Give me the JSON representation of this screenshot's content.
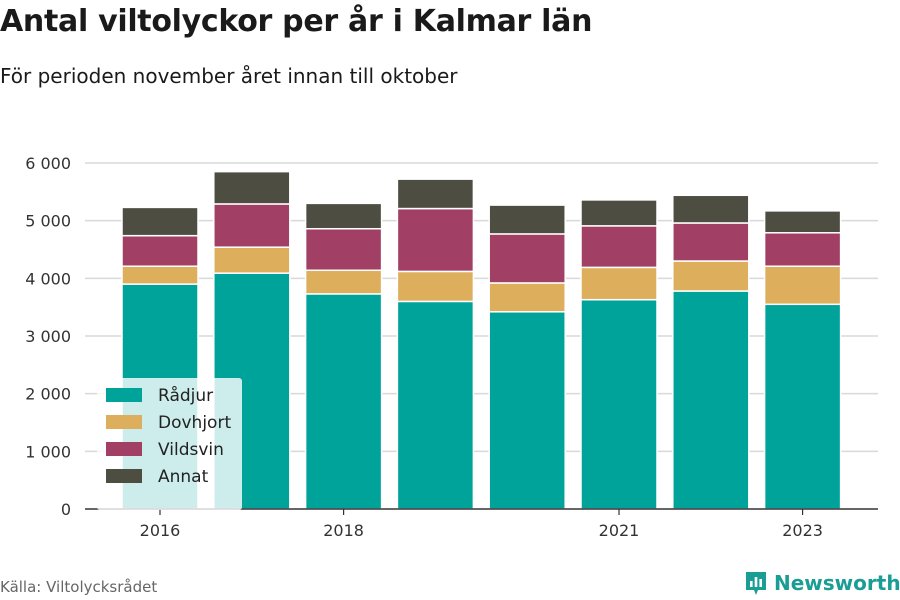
{
  "header": {
    "title": "Antal viltolyckor per år i Kalmar län",
    "subtitle": "För perioden november året innan till oktober"
  },
  "footer": {
    "source": "Källa: Viltolycksrådet",
    "brand": "Newsworthy",
    "brand_color": "#199d94"
  },
  "chart_data": {
    "type": "bar",
    "stacked": true,
    "x": [
      2016,
      2017,
      2018,
      2019,
      2020,
      2021,
      2022,
      2023
    ],
    "x_tick_labels": [
      "2016",
      "2018",
      "2021",
      "2023"
    ],
    "x_tick_values": [
      2016,
      2018,
      2021,
      2023
    ],
    "ylim": [
      0,
      6000
    ],
    "y_ticks": [
      0,
      1000,
      2000,
      3000,
      4000,
      5000,
      6000
    ],
    "y_tick_labels": [
      "0",
      "1 000",
      "2 000",
      "3 000",
      "4 000",
      "5 000",
      "6 000"
    ],
    "grid": true,
    "legend_position": "bottom-left",
    "series": [
      {
        "name": "Rådjur",
        "color": "#00a39a",
        "values": [
          3900,
          4090,
          3730,
          3600,
          3420,
          3630,
          3780,
          3550
        ]
      },
      {
        "name": "Dovhjort",
        "color": "#ddae5b",
        "values": [
          310,
          450,
          410,
          520,
          500,
          560,
          520,
          660
        ]
      },
      {
        "name": "Vildsvin",
        "color": "#a23f65",
        "values": [
          530,
          750,
          720,
          1090,
          850,
          720,
          660,
          580
        ]
      },
      {
        "name": "Annat",
        "color": "#4d4d41",
        "values": [
          490,
          560,
          440,
          510,
          500,
          450,
          480,
          380
        ]
      }
    ]
  }
}
